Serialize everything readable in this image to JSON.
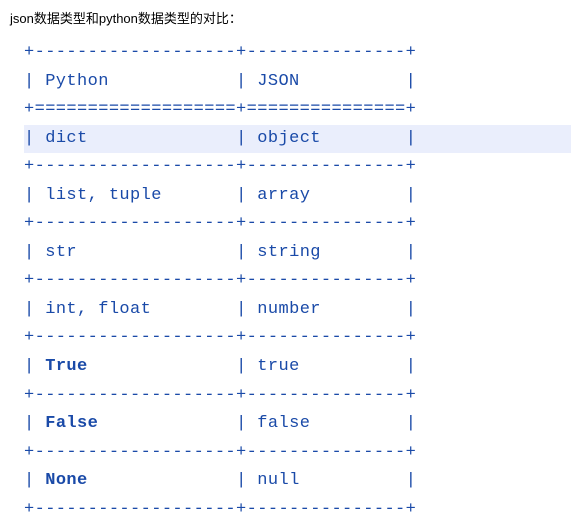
{
  "title": "json数据类型和python数据类型的对比：",
  "table": {
    "type": "ascii-table",
    "text_color": "#1a4aa8",
    "highlight_bg": "#eaeefc",
    "font_family": "Courier New",
    "font_size": 17,
    "border_top": "+-------------------+---------------+",
    "header_python": "| Python            | JSON          |",
    "header_sep": "+===================+===============+",
    "row_sep": "+-------------------+---------------+",
    "rows": [
      {
        "python": "dict",
        "json": "object",
        "highlight": true,
        "bold": false
      },
      {
        "python": "list, tuple",
        "json": "array",
        "highlight": false,
        "bold": false
      },
      {
        "python": "str",
        "json": "string",
        "highlight": false,
        "bold": false
      },
      {
        "python": "int, float",
        "json": "number",
        "highlight": false,
        "bold": false
      },
      {
        "python": "True",
        "json": "true",
        "highlight": false,
        "bold": true
      },
      {
        "python": "False",
        "json": "false",
        "highlight": false,
        "bold": true
      },
      {
        "python": "None",
        "json": "null",
        "highlight": false,
        "bold": true
      }
    ],
    "col1_inner_width": 19,
    "col2_inner_width": 15
  }
}
